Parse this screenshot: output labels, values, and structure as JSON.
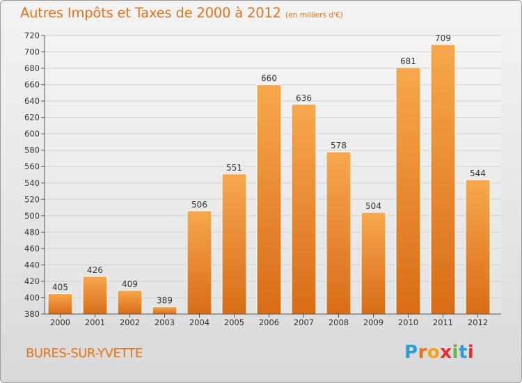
{
  "header": {
    "title": "Autres Impôts et Taxes de 2000 à 2012",
    "subtitle": "(en milliers d'€)"
  },
  "footer": {
    "city": "BURES-SUR-YVETTE",
    "logo_letters": [
      "P",
      "r",
      "o",
      "x",
      "i",
      "t",
      "i"
    ],
    "logo_colors": [
      "#2a9fd6",
      "#e3731b",
      "#f0a21e",
      "#e0312e",
      "#62b23c",
      "#2a9fd6",
      "#e0312e"
    ]
  },
  "colors": {
    "bar_top": "#f7a84e",
    "bar_bottom": "#d96c17",
    "accent": "#e3731b"
  },
  "chart_data": {
    "type": "bar",
    "title": "Autres Impôts et Taxes de 2000 à 2012",
    "subtitle": "(en milliers d'€)",
    "xlabel": "",
    "ylabel": "",
    "categories": [
      "2000",
      "2001",
      "2002",
      "2003",
      "2004",
      "2005",
      "2006",
      "2007",
      "2008",
      "2009",
      "2010",
      "2011",
      "2012"
    ],
    "values": [
      405,
      426,
      409,
      389,
      506,
      551,
      660,
      636,
      578,
      504,
      681,
      709,
      544
    ],
    "ylim": [
      380,
      720
    ],
    "yticks": [
      380,
      400,
      420,
      440,
      460,
      480,
      500,
      520,
      540,
      560,
      580,
      600,
      620,
      640,
      660,
      680,
      700,
      720
    ],
    "grid": true,
    "legend": "none"
  }
}
